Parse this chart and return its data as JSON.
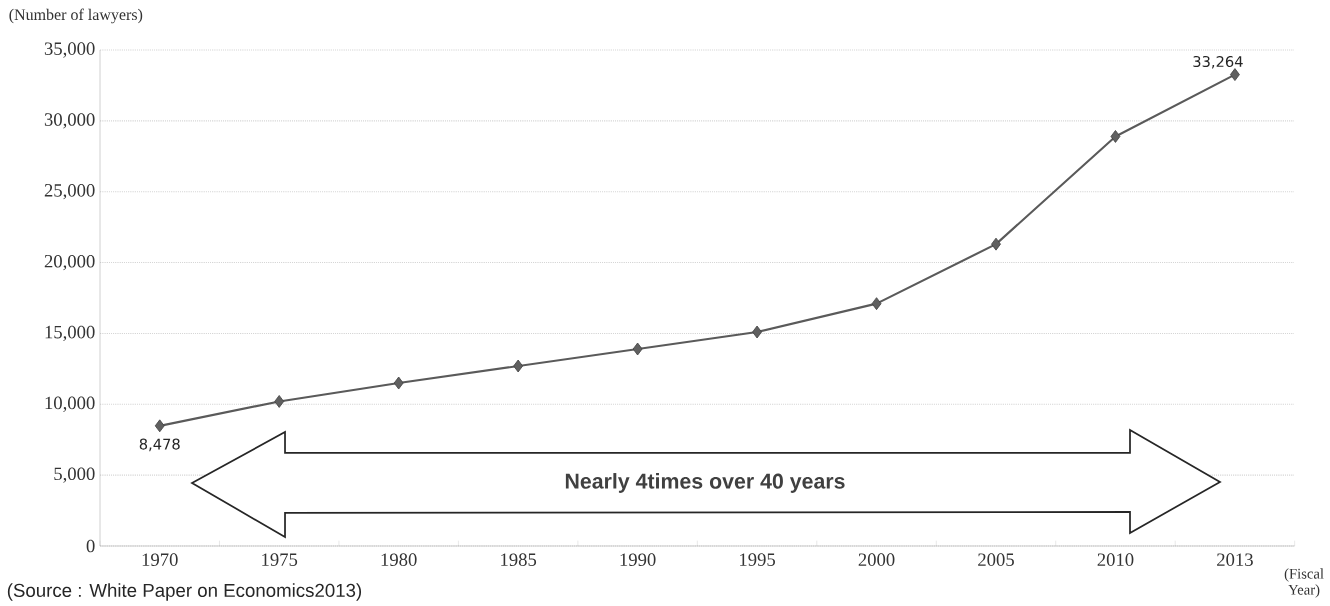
{
  "chart_data": {
    "type": "line",
    "ylabel": "(Number of lawyers)",
    "xlabel": "(Fiscal Year)",
    "categories": [
      "1970",
      "1975",
      "1980",
      "1985",
      "1990",
      "1995",
      "2000",
      "2005",
      "2010",
      "2013"
    ],
    "values": [
      8478,
      10200,
      11500,
      12700,
      13900,
      15100,
      17100,
      21300,
      28900,
      33264
    ],
    "value_labels": [
      "8,478",
      null,
      null,
      null,
      null,
      null,
      null,
      null,
      null,
      "33,264"
    ],
    "color": "#5a5a5a",
    "marker": "diamond",
    "line_style": "solid",
    "ylim": [
      0,
      35000
    ],
    "yticks": [
      0,
      {
        "value": 5000,
        "label": "5,000"
      },
      {
        "value": 10000,
        "label": "10,000"
      },
      {
        "value": 15000,
        "label": "15,000"
      },
      {
        "value": 20000,
        "label": "20,000"
      },
      {
        "value": 25000,
        "label": "25,000"
      },
      {
        "value": 30000,
        "label": "30,000"
      },
      {
        "value": 35000,
        "label": "35,000"
      }
    ],
    "grid": "y",
    "annotations": [
      "Nearly 4times over 40 years",
      "(Source : White Paper on Economics2013)"
    ]
  }
}
